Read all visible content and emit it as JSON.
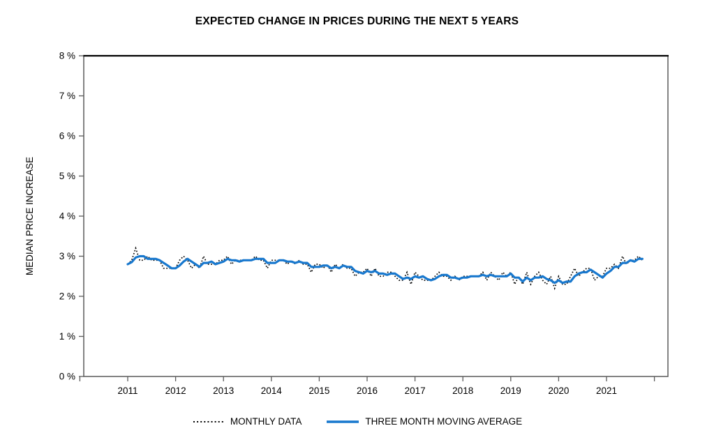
{
  "title": "EXPECTED CHANGE IN PRICES DURING THE NEXT 5 YEARS",
  "chart_data": {
    "type": "line",
    "title": "EXPECTED CHANGE IN PRICES DURING THE NEXT 5 YEARS",
    "xlabel": "",
    "ylabel": "MEDIAN PRICE INCREASE",
    "ylim": [
      0,
      8
    ],
    "y_tick_labels": [
      "0 %",
      "1 %",
      "2 %",
      "3 %",
      "4 %",
      "5 %",
      "6 %",
      "7 %",
      "8 %"
    ],
    "x_tick_labels": [
      "2011",
      "2012",
      "2013",
      "2014",
      "2015",
      "2016",
      "2017",
      "2018",
      "2019",
      "2020",
      "2021"
    ],
    "x_start": "2011-01",
    "x_end": "2021-10",
    "x_frequency": "monthly",
    "grid": "off",
    "legend_position": "bottom",
    "series": [
      {
        "name": "MONTHLY DATA",
        "style": "dotted",
        "color": "#000000",
        "values": [
          2.8,
          2.9,
          3.2,
          2.9,
          2.9,
          3.0,
          2.9,
          2.9,
          2.9,
          2.7,
          2.7,
          2.7,
          2.7,
          2.9,
          3.0,
          2.9,
          2.7,
          2.8,
          2.7,
          3.0,
          2.8,
          2.8,
          2.8,
          2.9,
          2.9,
          3.0,
          2.8,
          2.9,
          2.9,
          2.9,
          2.9,
          2.9,
          3.0,
          2.9,
          2.9,
          2.7,
          2.9,
          2.9,
          2.9,
          2.9,
          2.8,
          2.9,
          2.8,
          2.9,
          2.8,
          2.8,
          2.6,
          2.8,
          2.8,
          2.7,
          2.8,
          2.6,
          2.8,
          2.7,
          2.8,
          2.7,
          2.7,
          2.5,
          2.6,
          2.6,
          2.7,
          2.5,
          2.7,
          2.5,
          2.5,
          2.6,
          2.6,
          2.5,
          2.4,
          2.4,
          2.6,
          2.3,
          2.6,
          2.5,
          2.4,
          2.4,
          2.4,
          2.5,
          2.6,
          2.5,
          2.5,
          2.4,
          2.5,
          2.4,
          2.5,
          2.5,
          2.5,
          2.5,
          2.5,
          2.6,
          2.4,
          2.6,
          2.5,
          2.4,
          2.6,
          2.5,
          2.6,
          2.3,
          2.5,
          2.3,
          2.6,
          2.3,
          2.5,
          2.6,
          2.4,
          2.3,
          2.5,
          2.2,
          2.5,
          2.3,
          2.3,
          2.5,
          2.7,
          2.5,
          2.6,
          2.7,
          2.7,
          2.4,
          2.5,
          2.5,
          2.7,
          2.7,
          2.8,
          2.7,
          3.0,
          2.8,
          2.9,
          2.9,
          3.0,
          2.9
        ]
      },
      {
        "name": "THREE MONTH MOVING AVERAGE",
        "style": "solid",
        "color": "#1878CE",
        "derived_from": "3-month trailing moving average of MONTHLY DATA"
      }
    ]
  }
}
